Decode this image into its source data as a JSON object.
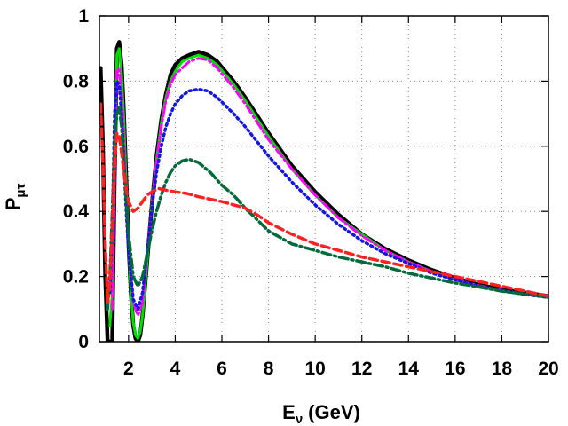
{
  "chart_data": {
    "type": "line",
    "title": "",
    "xlabel": {
      "main": "E",
      "sub": "ν",
      "unit": "(GeV)"
    },
    "ylabel": {
      "main": "P",
      "sub": "μτ"
    },
    "xlim": [
      0.75,
      20
    ],
    "ylim": [
      0,
      1
    ],
    "grid": true,
    "legend": "none",
    "xticks": [
      2,
      4,
      6,
      8,
      10,
      12,
      14,
      16,
      18,
      20
    ],
    "yticks": [
      0,
      0.2,
      0.4,
      0.6,
      0.8,
      1
    ],
    "ytick_labels": [
      "0",
      "0.2",
      "0.4",
      "0.6",
      "0.8",
      "1"
    ],
    "series": [
      {
        "color": "#000000",
        "dash": "solid",
        "width": 4.5,
        "x": [
          0.8,
          0.9,
          1.0,
          1.1,
          1.2,
          1.3,
          1.4,
          1.5,
          1.6,
          1.7,
          1.8,
          1.9,
          2.0,
          2.1,
          2.2,
          2.3,
          2.4,
          2.5,
          2.6,
          2.8,
          3.0,
          3.2,
          3.4,
          3.6,
          3.8,
          4.0,
          4.3,
          4.6,
          5.0,
          5.4,
          5.8,
          6.5,
          7.0,
          8.0,
          9.0,
          10.0,
          11.0,
          12.0,
          13.0,
          14.0,
          15.0,
          16.0,
          17.0,
          18.0,
          19.0,
          20.0
        ],
        "y": [
          0.84,
          0.6,
          0.2,
          0.0,
          0.0,
          0.0,
          0.5,
          0.9,
          0.92,
          0.85,
          0.7,
          0.5,
          0.3,
          0.15,
          0.05,
          0.01,
          0.0,
          0.02,
          0.08,
          0.25,
          0.42,
          0.57,
          0.68,
          0.76,
          0.82,
          0.85,
          0.87,
          0.88,
          0.89,
          0.88,
          0.86,
          0.8,
          0.75,
          0.64,
          0.54,
          0.46,
          0.39,
          0.33,
          0.285,
          0.25,
          0.22,
          0.195,
          0.175,
          0.16,
          0.15,
          0.14
        ]
      },
      {
        "color": "#00e000",
        "dash": "solid",
        "width": 3,
        "x": [
          1.2,
          1.3,
          1.4,
          1.5,
          1.6,
          1.7,
          1.8,
          1.9,
          2.0,
          2.1,
          2.2,
          2.3,
          2.4,
          2.5,
          2.6,
          2.8,
          3.0,
          3.2,
          3.4,
          3.6,
          3.8,
          4.0,
          4.3,
          4.6,
          5.0,
          5.4,
          5.8,
          6.5,
          7.0,
          8.0,
          9.0,
          10.0,
          11.0,
          12.0,
          13.0,
          14.0,
          15.0,
          16.0,
          17.0,
          18.0,
          19.0,
          20.0
        ],
        "y": [
          0.05,
          0.15,
          0.55,
          0.88,
          0.9,
          0.82,
          0.68,
          0.48,
          0.3,
          0.15,
          0.06,
          0.02,
          0.01,
          0.03,
          0.08,
          0.25,
          0.42,
          0.56,
          0.67,
          0.75,
          0.8,
          0.83,
          0.86,
          0.87,
          0.88,
          0.87,
          0.85,
          0.79,
          0.74,
          0.63,
          0.53,
          0.45,
          0.38,
          0.33,
          0.28,
          0.245,
          0.215,
          0.19,
          0.17,
          0.155,
          0.145,
          0.135
        ]
      },
      {
        "color": "#ff00ff",
        "dash": "dashdot",
        "width": 3,
        "x": [
          1.3,
          1.4,
          1.5,
          1.6,
          1.7,
          1.8,
          1.9,
          2.0,
          2.2,
          2.4,
          2.6,
          2.8,
          3.0,
          3.2,
          3.4,
          3.6,
          3.8,
          4.0,
          4.3,
          4.6,
          5.0,
          5.4,
          5.8,
          6.5,
          7.0,
          8.0,
          9.0,
          10.0,
          11.0,
          12.0,
          13.0,
          14.0,
          15.0,
          16.0,
          17.0,
          18.0,
          19.0,
          20.0
        ],
        "y": [
          0.1,
          0.5,
          0.83,
          0.84,
          0.76,
          0.62,
          0.45,
          0.3,
          0.12,
          0.08,
          0.12,
          0.27,
          0.42,
          0.55,
          0.66,
          0.74,
          0.79,
          0.82,
          0.84,
          0.86,
          0.87,
          0.865,
          0.84,
          0.78,
          0.73,
          0.62,
          0.53,
          0.45,
          0.38,
          0.325,
          0.28,
          0.245,
          0.215,
          0.19,
          0.172,
          0.158,
          0.145,
          0.137
        ]
      },
      {
        "color": "#1515e0",
        "dash": "dotted",
        "width": 3.5,
        "x": [
          1.2,
          1.3,
          1.4,
          1.5,
          1.6,
          1.7,
          1.8,
          1.9,
          2.0,
          2.2,
          2.4,
          2.6,
          2.8,
          3.0,
          3.2,
          3.4,
          3.6,
          3.8,
          4.0,
          4.3,
          4.6,
          5.0,
          5.4,
          5.8,
          6.5,
          7.0,
          8.0,
          9.0,
          10.0,
          11.0,
          12.0,
          13.0,
          14.0,
          15.0,
          16.0,
          17.0,
          18.0,
          19.0,
          20.0
        ],
        "y": [
          0.15,
          0.35,
          0.7,
          0.8,
          0.79,
          0.7,
          0.55,
          0.4,
          0.28,
          0.13,
          0.1,
          0.15,
          0.28,
          0.41,
          0.52,
          0.6,
          0.66,
          0.7,
          0.73,
          0.755,
          0.77,
          0.775,
          0.77,
          0.75,
          0.7,
          0.66,
          0.57,
          0.49,
          0.42,
          0.36,
          0.31,
          0.27,
          0.24,
          0.21,
          0.19,
          0.17,
          0.157,
          0.145,
          0.136
        ]
      },
      {
        "color": "#006a3a",
        "dash": "dashdot",
        "width": 3.5,
        "x": [
          1.1,
          1.2,
          1.3,
          1.4,
          1.5,
          1.6,
          1.7,
          1.8,
          1.9,
          2.0,
          2.2,
          2.4,
          2.6,
          2.8,
          3.0,
          3.2,
          3.4,
          3.6,
          3.8,
          4.0,
          4.3,
          4.6,
          5.0,
          5.5,
          6.0,
          6.5,
          7.0,
          8.0,
          9.0,
          10.0,
          11.0,
          12.0,
          13.0,
          14.0,
          15.0,
          16.0,
          17.0,
          18.0,
          19.0,
          20.0
        ],
        "y": [
          0.1,
          0.2,
          0.4,
          0.6,
          0.7,
          0.72,
          0.66,
          0.55,
          0.43,
          0.33,
          0.2,
          0.17,
          0.2,
          0.27,
          0.34,
          0.4,
          0.45,
          0.49,
          0.52,
          0.54,
          0.555,
          0.56,
          0.55,
          0.52,
          0.48,
          0.45,
          0.41,
          0.34,
          0.3,
          0.28,
          0.26,
          0.245,
          0.23,
          0.21,
          0.195,
          0.18,
          0.168,
          0.155,
          0.146,
          0.138
        ]
      },
      {
        "color": "#ff2020",
        "dash": "dashed",
        "width": 3.5,
        "x": [
          0.8,
          0.9,
          1.0,
          1.1,
          1.2,
          1.3,
          1.4,
          1.5,
          1.6,
          1.7,
          1.8,
          1.9,
          2.0,
          2.2,
          2.4,
          2.6,
          2.8,
          3.0,
          3.3,
          3.6,
          4.0,
          4.5,
          5.0,
          6.0,
          7.0,
          7.5,
          8.0,
          9.0,
          10.0,
          11.0,
          12.0,
          13.0,
          14.0,
          15.0,
          16.0,
          17.0,
          18.0,
          19.0,
          20.0
        ],
        "y": [
          0.73,
          0.55,
          0.3,
          0.12,
          0.18,
          0.35,
          0.55,
          0.64,
          0.63,
          0.58,
          0.52,
          0.47,
          0.43,
          0.4,
          0.41,
          0.43,
          0.45,
          0.46,
          0.47,
          0.465,
          0.46,
          0.455,
          0.445,
          0.43,
          0.41,
          0.39,
          0.365,
          0.33,
          0.3,
          0.28,
          0.26,
          0.245,
          0.23,
          0.215,
          0.2,
          0.185,
          0.17,
          0.155,
          0.14
        ]
      }
    ]
  }
}
